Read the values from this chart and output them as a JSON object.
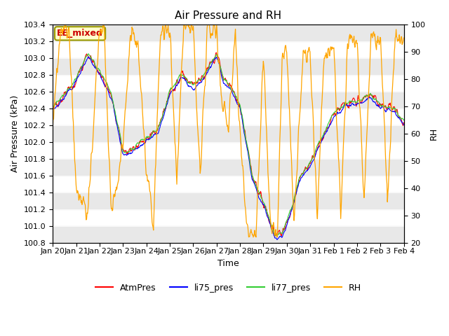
{
  "title": "Air Pressure and RH",
  "xlabel": "Time",
  "ylabel_left": "Air Pressure (kPa)",
  "ylabel_right": "RH",
  "ylim_left": [
    100.8,
    103.4
  ],
  "ylim_right": [
    20,
    100
  ],
  "yticks_left": [
    100.8,
    101.0,
    101.2,
    101.4,
    101.6,
    101.8,
    102.0,
    102.2,
    102.4,
    102.6,
    102.8,
    103.0,
    103.2,
    103.4
  ],
  "yticks_right": [
    20,
    30,
    40,
    50,
    60,
    70,
    80,
    90,
    100
  ],
  "xtick_labels": [
    "Jan 20",
    "Jan 21",
    "Jan 22",
    "Jan 23",
    "Jan 24",
    "Jan 25",
    "Jan 26",
    "Jan 27",
    "Jan 28",
    "Jan 29",
    "Jan 30",
    "Jan 31",
    "Feb 1",
    "Feb 2",
    "Feb 3",
    "Feb 4"
  ],
  "annotation_text": "EE_mixed",
  "annotation_box_color": "#ffffcc",
  "annotation_box_edge": "#999900",
  "annotation_text_color": "#cc0000",
  "legend_labels": [
    "AtmPres",
    "li75_pres",
    "li77_pres",
    "RH"
  ],
  "line_colors": [
    "red",
    "blue",
    "limegreen",
    "orange"
  ],
  "background_color": "#ffffff",
  "strip_color": "#e8e8e8",
  "title_fontsize": 11,
  "axis_fontsize": 9,
  "tick_fontsize": 8,
  "legend_fontsize": 9
}
